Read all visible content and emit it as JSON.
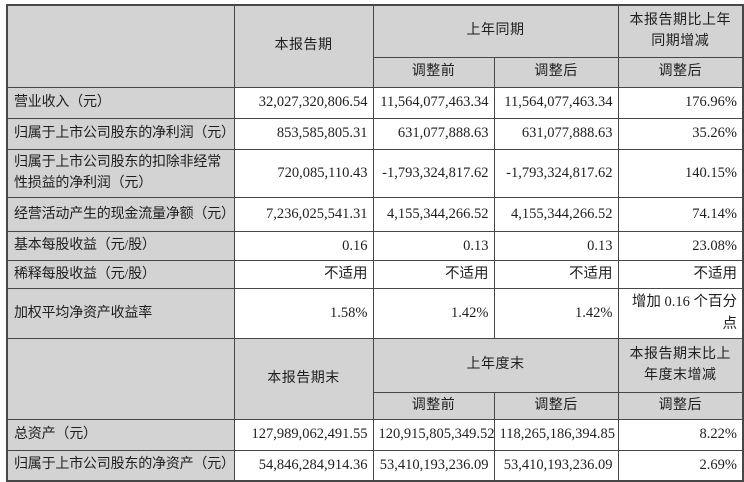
{
  "colors": {
    "header_bg": "#d3d3d3",
    "cell_bg": "#ffffff",
    "border": "#474747",
    "text": "#1e1e1e"
  },
  "section1": {
    "header": {
      "current_period": "本报告期",
      "prior_period_group": "上年同期",
      "change_group": "本报告期比上年同期增减",
      "adjust_before": "调整前",
      "adjust_after": "调整后",
      "change_adjust_after": "调整后"
    },
    "rows": [
      {
        "label": "营业收入（元）",
        "current": "32,027,320,806.54",
        "before": "11,564,077,463.34",
        "after": "11,564,077,463.34",
        "change": "176.96%"
      },
      {
        "label": "归属于上市公司股东的净利润（元）",
        "current": "853,585,805.31",
        "before": "631,077,888.63",
        "after": "631,077,888.63",
        "change": "35.26%"
      },
      {
        "label": "归属于上市公司股东的扣除非经常性损益的净利润（元）",
        "current": "720,085,110.43",
        "before": "-1,793,324,817.62",
        "after": "-1,793,324,817.62",
        "change": "140.15%"
      },
      {
        "label": "经营活动产生的现金流量净额（元）",
        "current": "7,236,025,541.31",
        "before": "4,155,344,266.52",
        "after": "4,155,344,266.52",
        "change": "74.14%"
      },
      {
        "label": "基本每股收益（元/股）",
        "current": "0.16",
        "before": "0.13",
        "after": "0.13",
        "change": "23.08%"
      },
      {
        "label": "稀释每股收益（元/股）",
        "current": "不适用",
        "before": "不适用",
        "after": "不适用",
        "change": "不适用"
      },
      {
        "label": "加权平均净资产收益率",
        "current": "1.58%",
        "before": "1.42%",
        "after": "1.42%",
        "change": "增加 0.16 个百分点"
      }
    ]
  },
  "section2": {
    "header": {
      "current_period": "本报告期末",
      "prior_period_group": "上年度末",
      "change_group": "本报告期末比上年度末增减",
      "adjust_before": "调整前",
      "adjust_after": "调整后",
      "change_adjust_after": "调整后"
    },
    "rows": [
      {
        "label": "总资产（元）",
        "current": "127,989,062,491.55",
        "before": "120,915,805,349.52",
        "after": "118,265,186,394.85",
        "change": "8.22%"
      },
      {
        "label": "归属于上市公司股东的净资产（元）",
        "current": "54,846,284,914.36",
        "before": "53,410,193,236.09",
        "after": "53,410,193,236.09",
        "change": "2.69%"
      }
    ]
  }
}
